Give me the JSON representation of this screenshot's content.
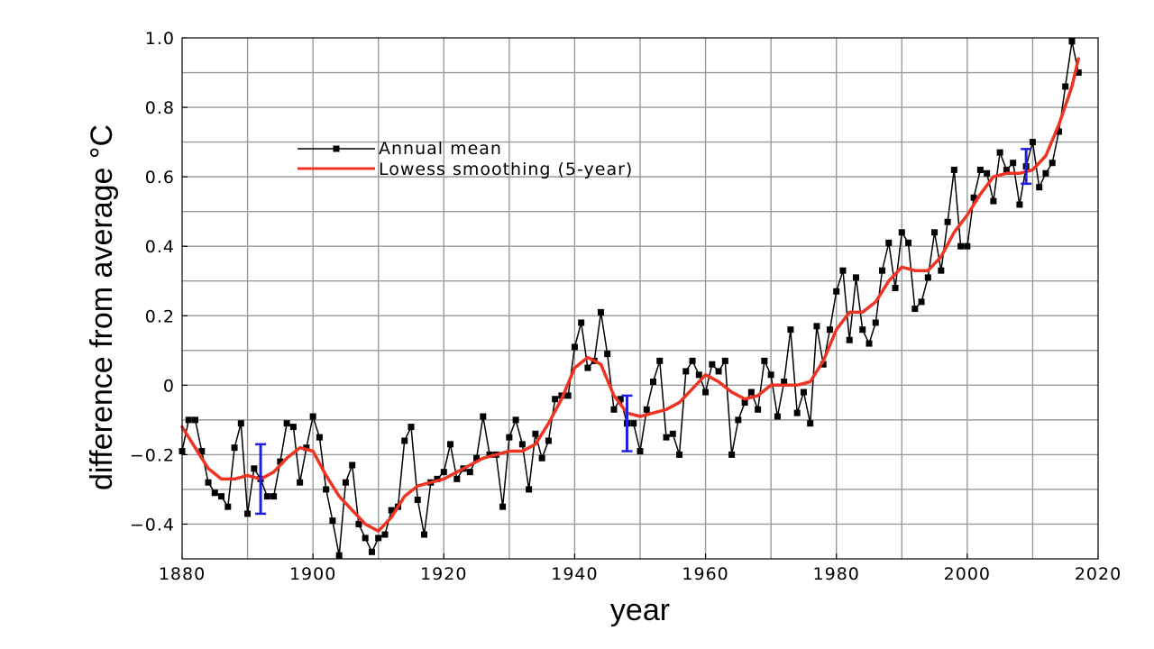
{
  "chart_data": {
    "type": "line",
    "xlabel": "year",
    "ylabel": "difference from average °C",
    "xlim": [
      1880,
      2020
    ],
    "ylim": [
      -0.5,
      1.0
    ],
    "x_ticks": [
      1880,
      1900,
      1920,
      1940,
      1960,
      1980,
      2000,
      2020
    ],
    "y_ticks": [
      {
        "value": -0.4,
        "label": "−0.4"
      },
      {
        "value": -0.2,
        "label": "−0.2"
      },
      {
        "value": 0,
        "label": "0"
      },
      {
        "value": 0.2,
        "label": "0.2"
      },
      {
        "value": 0.4,
        "label": "0.4"
      },
      {
        "value": 0.6,
        "label": "0.6"
      },
      {
        "value": 0.8,
        "label": "0.8"
      },
      {
        "value": 1.0,
        "label": "1.0"
      }
    ],
    "grid": true,
    "legend_position": "upper-left",
    "series": [
      {
        "name": "Annual mean",
        "color": "#000000",
        "marker": "square",
        "x": [
          1880,
          1881,
          1882,
          1883,
          1884,
          1885,
          1886,
          1887,
          1888,
          1889,
          1890,
          1891,
          1892,
          1893,
          1894,
          1895,
          1896,
          1897,
          1898,
          1899,
          1900,
          1901,
          1902,
          1903,
          1904,
          1905,
          1906,
          1907,
          1908,
          1909,
          1910,
          1911,
          1912,
          1913,
          1914,
          1915,
          1916,
          1917,
          1918,
          1919,
          1920,
          1921,
          1922,
          1923,
          1924,
          1925,
          1926,
          1927,
          1928,
          1929,
          1930,
          1931,
          1932,
          1933,
          1934,
          1935,
          1936,
          1937,
          1938,
          1939,
          1940,
          1941,
          1942,
          1943,
          1944,
          1945,
          1946,
          1947,
          1948,
          1949,
          1950,
          1951,
          1952,
          1953,
          1954,
          1955,
          1956,
          1957,
          1958,
          1959,
          1960,
          1961,
          1962,
          1963,
          1964,
          1965,
          1966,
          1967,
          1968,
          1969,
          1970,
          1971,
          1972,
          1973,
          1974,
          1975,
          1976,
          1977,
          1978,
          1979,
          1980,
          1981,
          1982,
          1983,
          1984,
          1985,
          1986,
          1987,
          1988,
          1989,
          1990,
          1991,
          1992,
          1993,
          1994,
          1995,
          1996,
          1997,
          1998,
          1999,
          2000,
          2001,
          2002,
          2003,
          2004,
          2005,
          2006,
          2007,
          2008,
          2009,
          2010,
          2011,
          2012,
          2013,
          2014,
          2015,
          2016,
          2017
        ],
        "y": [
          -0.19,
          -0.1,
          -0.1,
          -0.19,
          -0.28,
          -0.31,
          -0.32,
          -0.35,
          -0.18,
          -0.11,
          -0.37,
          -0.24,
          -0.27,
          -0.32,
          -0.32,
          -0.22,
          -0.11,
          -0.12,
          -0.28,
          -0.18,
          -0.09,
          -0.15,
          -0.3,
          -0.39,
          -0.49,
          -0.28,
          -0.23,
          -0.4,
          -0.44,
          -0.48,
          -0.44,
          -0.43,
          -0.36,
          -0.35,
          -0.16,
          -0.12,
          -0.33,
          -0.43,
          -0.28,
          -0.27,
          -0.25,
          -0.17,
          -0.27,
          -0.24,
          -0.25,
          -0.21,
          -0.09,
          -0.2,
          -0.2,
          -0.35,
          -0.15,
          -0.1,
          -0.17,
          -0.3,
          -0.14,
          -0.21,
          -0.16,
          -0.04,
          -0.03,
          -0.03,
          0.11,
          0.18,
          0.05,
          0.07,
          0.21,
          0.09,
          -0.07,
          -0.04,
          -0.11,
          -0.11,
          -0.19,
          -0.07,
          0.01,
          0.07,
          -0.15,
          -0.14,
          -0.2,
          0.04,
          0.07,
          0.03,
          -0.02,
          0.06,
          0.04,
          0.07,
          -0.2,
          -0.1,
          -0.05,
          -0.02,
          -0.07,
          0.07,
          0.03,
          -0.09,
          0.01,
          0.16,
          -0.08,
          -0.02,
          -0.11,
          0.17,
          0.06,
          0.16,
          0.27,
          0.33,
          0.13,
          0.31,
          0.16,
          0.12,
          0.18,
          0.33,
          0.41,
          0.28,
          0.44,
          0.41,
          0.22,
          0.24,
          0.31,
          0.44,
          0.33,
          0.47,
          0.62,
          0.4,
          0.4,
          0.54,
          0.62,
          0.61,
          0.53,
          0.67,
          0.62,
          0.64,
          0.52,
          0.63,
          0.7,
          0.57,
          0.61,
          0.64,
          0.73,
          0.86,
          0.99,
          0.9
        ]
      },
      {
        "name": "Lowess smoothing (5-year)",
        "color": "#ee3322",
        "x": [
          1880,
          1882,
          1884,
          1886,
          1888,
          1890,
          1892,
          1894,
          1896,
          1898,
          1900,
          1902,
          1904,
          1906,
          1908,
          1910,
          1912,
          1914,
          1916,
          1918,
          1920,
          1922,
          1924,
          1926,
          1928,
          1930,
          1932,
          1934,
          1936,
          1938,
          1940,
          1942,
          1944,
          1946,
          1948,
          1950,
          1952,
          1954,
          1956,
          1958,
          1960,
          1962,
          1964,
          1966,
          1968,
          1970,
          1972,
          1974,
          1976,
          1978,
          1980,
          1982,
          1984,
          1986,
          1988,
          1990,
          1992,
          1994,
          1996,
          1998,
          2000,
          2002,
          2004,
          2006,
          2008,
          2010,
          2012,
          2014,
          2016,
          2017
        ],
        "y": [
          -0.12,
          -0.18,
          -0.24,
          -0.27,
          -0.27,
          -0.26,
          -0.27,
          -0.25,
          -0.21,
          -0.18,
          -0.19,
          -0.26,
          -0.32,
          -0.36,
          -0.4,
          -0.42,
          -0.38,
          -0.32,
          -0.29,
          -0.28,
          -0.27,
          -0.25,
          -0.23,
          -0.21,
          -0.2,
          -0.19,
          -0.19,
          -0.17,
          -0.11,
          -0.04,
          0.05,
          0.08,
          0.06,
          -0.03,
          -0.08,
          -0.09,
          -0.08,
          -0.07,
          -0.05,
          -0.01,
          0.03,
          0.01,
          -0.02,
          -0.04,
          -0.03,
          0.0,
          0.0,
          0.0,
          0.01,
          0.07,
          0.16,
          0.21,
          0.21,
          0.24,
          0.3,
          0.34,
          0.33,
          0.33,
          0.37,
          0.44,
          0.49,
          0.55,
          0.6,
          0.61,
          0.61,
          0.62,
          0.66,
          0.75,
          0.86,
          0.94
        ]
      }
    ],
    "error_bars": [
      {
        "x": 1892,
        "low": -0.37,
        "high": -0.17
      },
      {
        "x": 1948,
        "low": -0.19,
        "high": -0.03
      },
      {
        "x": 2009,
        "low": 0.58,
        "high": 0.68
      }
    ],
    "error_bar_color": "#1f1fe0"
  }
}
